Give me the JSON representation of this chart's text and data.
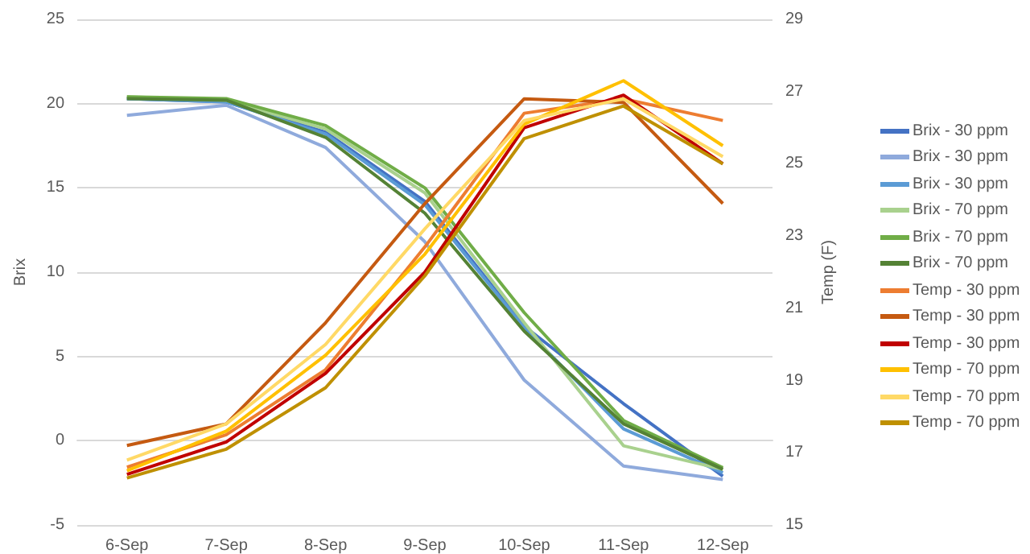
{
  "chart_data": {
    "type": "line",
    "xlabel": null,
    "ylabel": "Brix",
    "y2label": "Temp (F)",
    "categories": [
      "6-Sep",
      "7-Sep",
      "8-Sep",
      "9-Sep",
      "10-Sep",
      "11-Sep",
      "12-Sep"
    ],
    "ylim": [
      -5,
      25
    ],
    "yticks": [
      -5,
      0,
      5,
      10,
      15,
      20,
      25
    ],
    "y2lim": [
      15,
      29
    ],
    "y2ticks": [
      15,
      17,
      19,
      21,
      23,
      25,
      27,
      29
    ],
    "grid": "y",
    "legend": "right",
    "marker": "none",
    "line_style": "solid",
    "series": [
      {
        "name": "Brix - 30 ppm",
        "color": "#4472c4",
        "values": [
          20.3,
          20.1,
          18.3,
          14.2,
          6.8,
          2.2,
          -2.1
        ]
      },
      {
        "name": "Brix - 30 ppm",
        "color": "#8faadc",
        "values": [
          19.3,
          19.9,
          17.4,
          11.8,
          3.6,
          -1.5,
          -2.3
        ]
      },
      {
        "name": "Brix - 30 ppm",
        "color": "#5b9bd5",
        "values": [
          20.3,
          20.1,
          18.2,
          14.0,
          6.7,
          0.7,
          -1.9
        ]
      },
      {
        "name": "Brix - 70 ppm",
        "color": "#a9d18e",
        "values": [
          20.4,
          20.2,
          18.5,
          14.7,
          7.0,
          -0.3,
          -1.7
        ]
      },
      {
        "name": "Brix - 70 ppm",
        "color": "#70ad47",
        "values": [
          20.4,
          20.3,
          18.7,
          15.0,
          7.6,
          1.2,
          -1.6
        ]
      },
      {
        "name": "Brix - 70 ppm",
        "color": "#548235",
        "values": [
          20.3,
          20.2,
          18.0,
          13.5,
          6.5,
          1.0,
          -1.7
        ]
      },
      {
        "name": "Temp - 30 ppm",
        "color": "#ed7d31",
        "axis": "y2",
        "values": [
          16.6,
          17.5,
          19.3,
          22.7,
          26.4,
          26.8,
          26.2
        ]
      },
      {
        "name": "Temp - 30 ppm",
        "color": "#c55a11",
        "axis": "y2",
        "values": [
          17.2,
          17.8,
          20.6,
          23.9,
          26.8,
          26.7,
          23.9
        ]
      },
      {
        "name": "Temp - 30 ppm",
        "color": "#c00000",
        "axis": "y2",
        "values": [
          16.4,
          17.3,
          19.2,
          22.0,
          26.0,
          26.9,
          25.0
        ]
      },
      {
        "name": "Temp - 70 ppm",
        "color": "#ffc000",
        "axis": "y2",
        "values": [
          16.5,
          17.6,
          19.7,
          22.5,
          26.1,
          27.3,
          25.5
        ]
      },
      {
        "name": "Temp - 70 ppm",
        "color": "#ffd966",
        "axis": "y2",
        "values": [
          16.8,
          17.8,
          20.0,
          23.2,
          26.2,
          26.8,
          25.2
        ]
      },
      {
        "name": "Temp - 70 ppm",
        "color": "#bf9000",
        "axis": "y2",
        "values": [
          16.3,
          17.1,
          18.8,
          21.9,
          25.7,
          26.6,
          25.0
        ]
      }
    ]
  }
}
